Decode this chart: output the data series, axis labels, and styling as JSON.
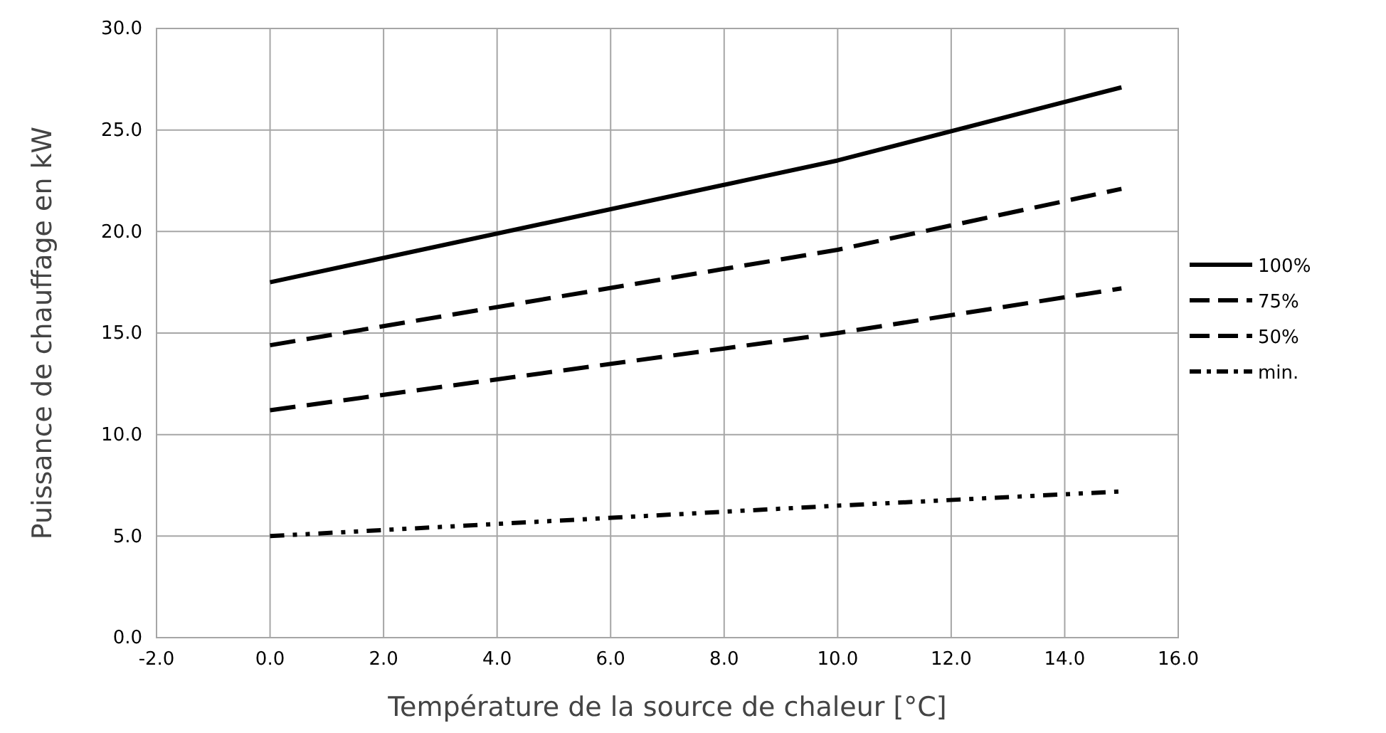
{
  "chart_data": {
    "type": "line",
    "xlabel": "Température de la source de chaleur [°C]",
    "ylabel": "Puissance de chauffage en kW",
    "x": [
      0,
      10,
      15
    ],
    "series": [
      {
        "name": "100%",
        "color": "#000000",
        "line_style": "solid",
        "values": [
          17.5,
          23.5,
          27.1
        ]
      },
      {
        "name": "75%",
        "color": "#000000",
        "line_style": "dashed",
        "values": [
          14.4,
          19.1,
          22.1
        ]
      },
      {
        "name": "50%",
        "color": "#000000",
        "line_style": "dashed",
        "values": [
          11.2,
          15.0,
          17.2
        ]
      },
      {
        "name": "min.",
        "color": "#000000",
        "line_style": "dotted",
        "values": [
          5.0,
          6.5,
          7.2
        ]
      }
    ],
    "xlim": [
      -2,
      16
    ],
    "xticks": [
      {
        "value": -2,
        "label": "-2.0"
      },
      {
        "value": 0,
        "label": "0.0"
      },
      {
        "value": 2,
        "label": "2.0"
      },
      {
        "value": 4,
        "label": "4.0"
      },
      {
        "value": 6,
        "label": "6.0"
      },
      {
        "value": 8,
        "label": "8.0"
      },
      {
        "value": 10,
        "label": "10.0"
      },
      {
        "value": 12,
        "label": "12.0"
      },
      {
        "value": 14,
        "label": "14.0"
      },
      {
        "value": 16,
        "label": "16.0"
      }
    ],
    "ylim": [
      0,
      30
    ],
    "yticks": [
      {
        "value": 0,
        "label": "0.0"
      },
      {
        "value": 5,
        "label": "5.0"
      },
      {
        "value": 10,
        "label": "10.0"
      },
      {
        "value": 15,
        "label": "15.0"
      },
      {
        "value": 20,
        "label": "20.0"
      },
      {
        "value": 25,
        "label": "25.0"
      },
      {
        "value": 30,
        "label": "30.0"
      }
    ],
    "grid": true,
    "legend": "right",
    "marker": "none"
  }
}
